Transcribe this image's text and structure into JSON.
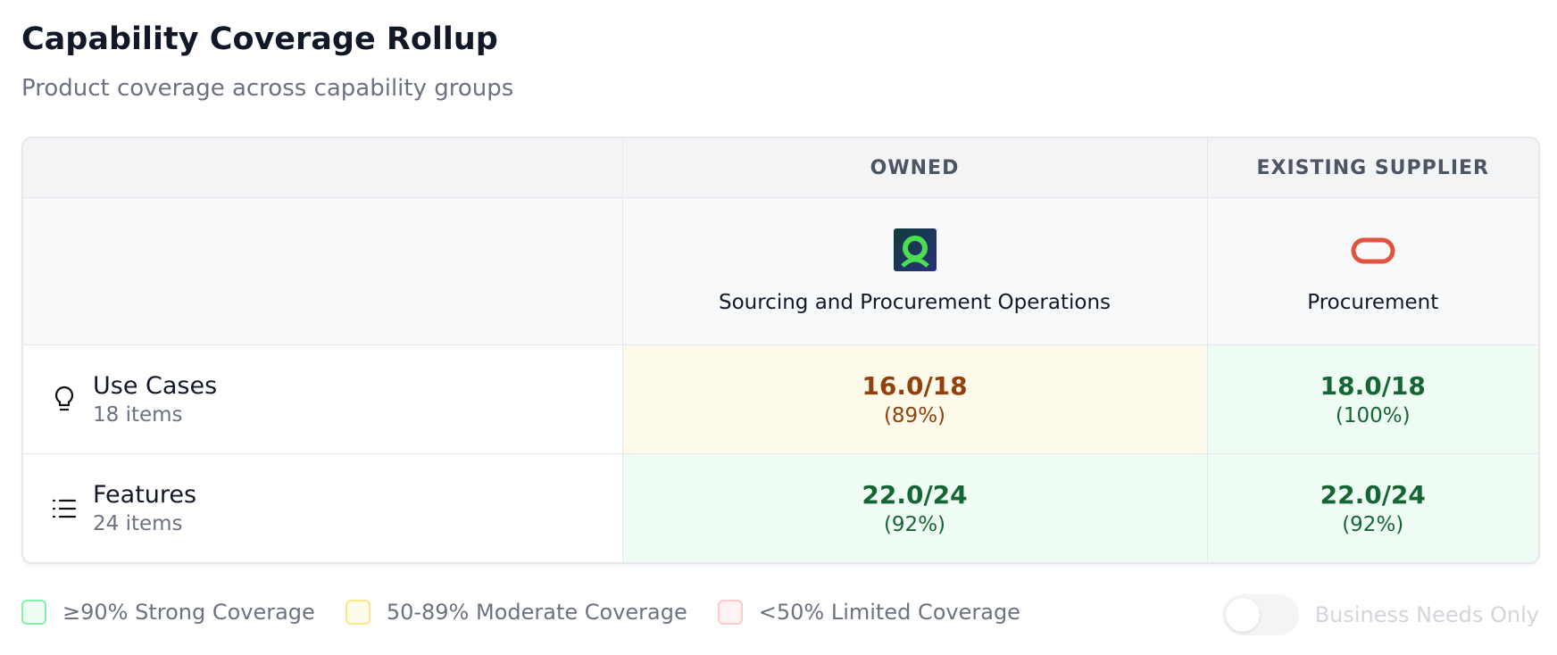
{
  "header": {
    "title": "Capability Coverage Rollup",
    "subtitle": "Product coverage across capability groups"
  },
  "table": {
    "groups": [
      "OWNED",
      "EXISTING SUPPLIER"
    ],
    "products": [
      "Sourcing and Procurement Operations",
      "Procurement"
    ],
    "rows": [
      {
        "label": "Use Cases",
        "count": "18 items",
        "cells": [
          {
            "score": "16.0/18",
            "percent": "(89%)",
            "background": "#fefbea",
            "color": "#92400e"
          },
          {
            "score": "18.0/18",
            "percent": "(100%)",
            "background": "#effcf3",
            "color": "#166534"
          }
        ]
      },
      {
        "label": "Features",
        "count": "24 items",
        "cells": [
          {
            "score": "22.0/24",
            "percent": "(92%)",
            "background": "#effcf3",
            "color": "#166534"
          },
          {
            "score": "22.0/24",
            "percent": "(92%)",
            "background": "#effcf3",
            "color": "#166534"
          }
        ]
      }
    ]
  },
  "legend": [
    {
      "label": "≥90% Strong Coverage",
      "background": "#f0fdf4",
      "border": "#86efac"
    },
    {
      "label": "50-89% Moderate Coverage",
      "background": "#fefce8",
      "border": "#fde68a"
    },
    {
      "label": "<50% Limited Coverage",
      "background": "#fef2f2",
      "border": "#fecaca"
    }
  ],
  "toggle": {
    "label": "Business Needs Only",
    "on": false
  }
}
